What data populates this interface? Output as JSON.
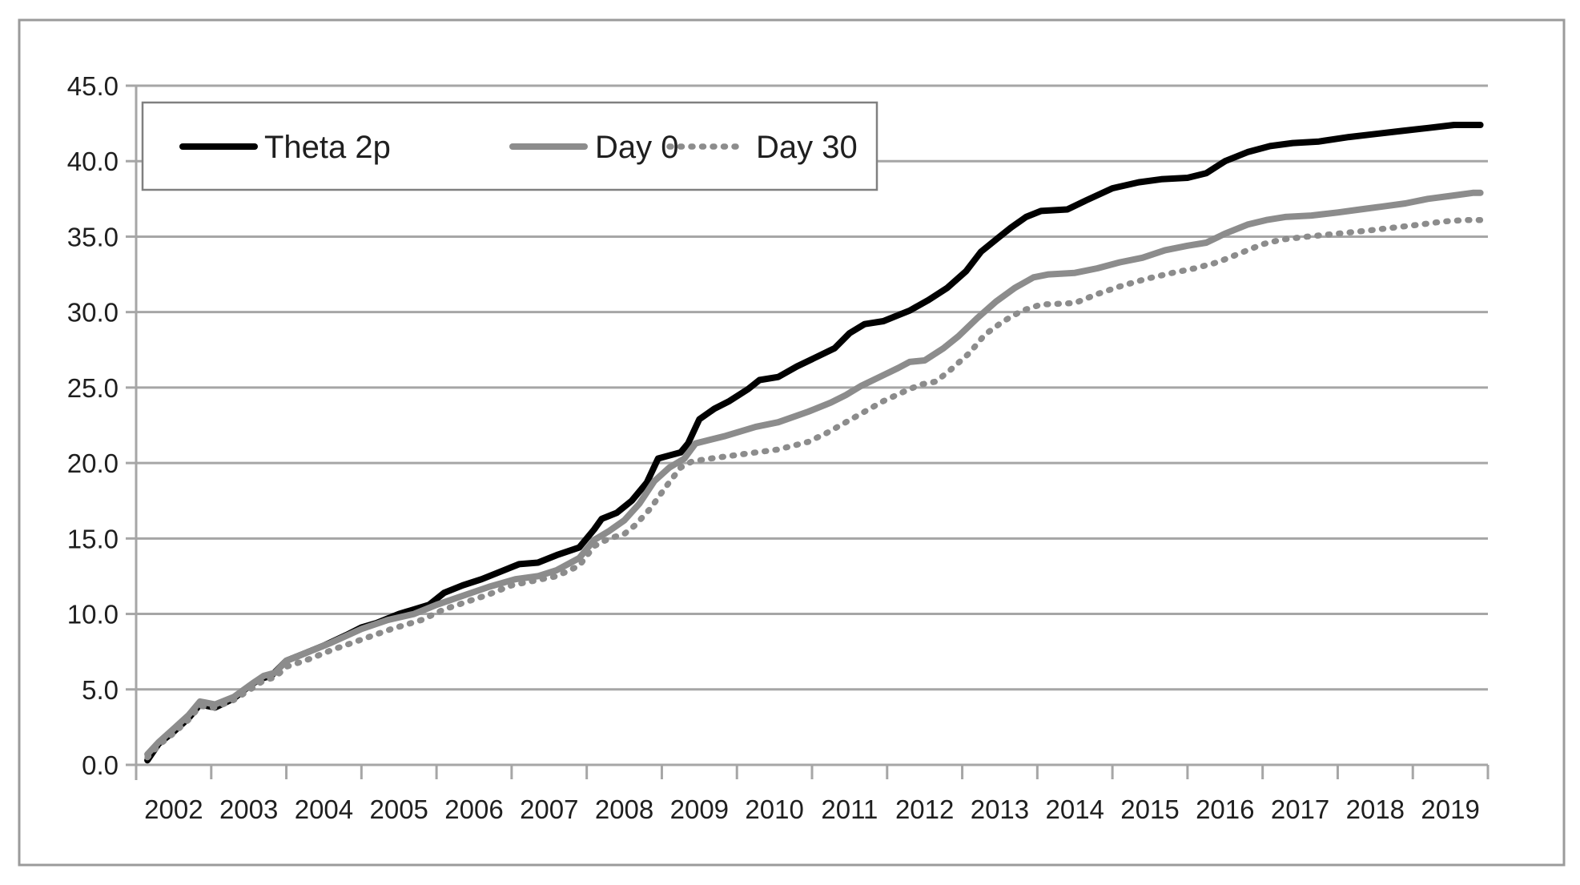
{
  "figure": {
    "background": "#ffffff",
    "border_color": "#9b9b9b"
  },
  "chart_data": {
    "type": "line",
    "title": "",
    "xlabel": "",
    "ylabel": "",
    "xlim": [
      2002,
      2020
    ],
    "ylim": [
      0,
      45
    ],
    "y_step": 5,
    "grid": "horizontal",
    "gridline_color": "#a6a6a6",
    "axis_color": "#a6a6a6",
    "tick_label_color": "#1f1f1f",
    "x_tick_labels": [
      "2002",
      "2003",
      "2004",
      "2005",
      "2006",
      "2007",
      "2008",
      "2009",
      "2010",
      "2011",
      "2012",
      "2013",
      "2014",
      "2015",
      "2016",
      "2017",
      "2018",
      "2019"
    ],
    "y_tick_labels": [
      "0.0",
      "5.0",
      "10.0",
      "15.0",
      "20.0",
      "25.0",
      "30.0",
      "35.0",
      "40.0",
      "45.0"
    ],
    "legend": {
      "position": "top-left-inside",
      "border_color": "#808080",
      "background": "#ffffff",
      "items": [
        {
          "label": "Theta 2p",
          "swatch": "solid-black"
        },
        {
          "label": "Day 0",
          "swatch": "solid-gray"
        },
        {
          "label": "Day 30",
          "swatch": "dotted-gray"
        }
      ]
    },
    "series": [
      {
        "name": "Theta 2p",
        "color": "#000000",
        "style": "solid",
        "points": [
          [
            2002.15,
            0.3
          ],
          [
            2002.3,
            1.4
          ],
          [
            2002.5,
            2.2
          ],
          [
            2002.7,
            3.1
          ],
          [
            2002.85,
            4.0
          ],
          [
            2003.05,
            3.8
          ],
          [
            2003.3,
            4.4
          ],
          [
            2003.5,
            5.2
          ],
          [
            2003.65,
            5.7
          ],
          [
            2003.8,
            5.9
          ],
          [
            2004,
            6.9
          ],
          [
            2004.25,
            7.4
          ],
          [
            2004.5,
            7.9
          ],
          [
            2004.8,
            8.6
          ],
          [
            2005,
            9.1
          ],
          [
            2005.2,
            9.4
          ],
          [
            2005.5,
            10
          ],
          [
            2005.9,
            10.6
          ],
          [
            2006.1,
            11.4
          ],
          [
            2006.35,
            11.9
          ],
          [
            2006.6,
            12.3
          ],
          [
            2006.85,
            12.8
          ],
          [
            2007.1,
            13.3
          ],
          [
            2007.35,
            13.4
          ],
          [
            2007.6,
            13.9
          ],
          [
            2007.9,
            14.4
          ],
          [
            2008.1,
            15.6
          ],
          [
            2008.2,
            16.3
          ],
          [
            2008.4,
            16.7
          ],
          [
            2008.6,
            17.5
          ],
          [
            2008.8,
            18.7
          ],
          [
            2008.95,
            20.3
          ],
          [
            2009.1,
            20.5
          ],
          [
            2009.25,
            20.7
          ],
          [
            2009.35,
            21.3
          ],
          [
            2009.5,
            22.9
          ],
          [
            2009.7,
            23.6
          ],
          [
            2009.9,
            24.1
          ],
          [
            2010.15,
            24.9
          ],
          [
            2010.3,
            25.5
          ],
          [
            2010.55,
            25.7
          ],
          [
            2010.8,
            26.4
          ],
          [
            2011.05,
            27
          ],
          [
            2011.3,
            27.6
          ],
          [
            2011.5,
            28.6
          ],
          [
            2011.7,
            29.2
          ],
          [
            2011.95,
            29.4
          ],
          [
            2012.15,
            29.8
          ],
          [
            2012.3,
            30.1
          ],
          [
            2012.55,
            30.8
          ],
          [
            2012.8,
            31.6
          ],
          [
            2013.05,
            32.7
          ],
          [
            2013.25,
            34
          ],
          [
            2013.5,
            35
          ],
          [
            2013.65,
            35.6
          ],
          [
            2013.85,
            36.3
          ],
          [
            2014.05,
            36.7
          ],
          [
            2014.4,
            36.8
          ],
          [
            2014.65,
            37.4
          ],
          [
            2015,
            38.2
          ],
          [
            2015.35,
            38.6
          ],
          [
            2015.65,
            38.8
          ],
          [
            2016,
            38.9
          ],
          [
            2016.25,
            39.2
          ],
          [
            2016.5,
            40
          ],
          [
            2016.8,
            40.6
          ],
          [
            2017.1,
            41
          ],
          [
            2017.4,
            41.2
          ],
          [
            2017.75,
            41.3
          ],
          [
            2018.15,
            41.6
          ],
          [
            2018.5,
            41.8
          ],
          [
            2018.85,
            42
          ],
          [
            2019.2,
            42.2
          ],
          [
            2019.55,
            42.4
          ],
          [
            2019.9,
            42.4
          ]
        ]
      },
      {
        "name": "Day 0",
        "color": "#8c8c8c",
        "style": "solid",
        "points": [
          [
            2002.15,
            0.7
          ],
          [
            2002.3,
            1.5
          ],
          [
            2002.5,
            2.4
          ],
          [
            2002.7,
            3.3
          ],
          [
            2002.85,
            4.2
          ],
          [
            2003.05,
            4
          ],
          [
            2003.3,
            4.5
          ],
          [
            2003.55,
            5.4
          ],
          [
            2003.7,
            5.9
          ],
          [
            2003.85,
            6.1
          ],
          [
            2004,
            6.9
          ],
          [
            2004.3,
            7.5
          ],
          [
            2004.6,
            8.1
          ],
          [
            2005,
            9
          ],
          [
            2005.35,
            9.6
          ],
          [
            2005.7,
            10
          ],
          [
            2006,
            10.6
          ],
          [
            2006.35,
            11.2
          ],
          [
            2006.7,
            11.8
          ],
          [
            2007.05,
            12.3
          ],
          [
            2007.35,
            12.5
          ],
          [
            2007.6,
            12.9
          ],
          [
            2007.9,
            13.7
          ],
          [
            2008.1,
            14.9
          ],
          [
            2008.3,
            15.5
          ],
          [
            2008.5,
            16.2
          ],
          [
            2008.7,
            17.3
          ],
          [
            2008.9,
            18.8
          ],
          [
            2009.1,
            19.7
          ],
          [
            2009.3,
            20.3
          ],
          [
            2009.45,
            21.3
          ],
          [
            2009.85,
            21.8
          ],
          [
            2010.25,
            22.4
          ],
          [
            2010.55,
            22.7
          ],
          [
            2010.95,
            23.4
          ],
          [
            2011.25,
            24
          ],
          [
            2011.45,
            24.5
          ],
          [
            2011.65,
            25.1
          ],
          [
            2011.9,
            25.7
          ],
          [
            2012.15,
            26.3
          ],
          [
            2012.3,
            26.7
          ],
          [
            2012.5,
            26.8
          ],
          [
            2012.75,
            27.6
          ],
          [
            2012.95,
            28.4
          ],
          [
            2013.2,
            29.6
          ],
          [
            2013.45,
            30.7
          ],
          [
            2013.7,
            31.6
          ],
          [
            2013.95,
            32.3
          ],
          [
            2014.15,
            32.5
          ],
          [
            2014.5,
            32.6
          ],
          [
            2014.8,
            32.9
          ],
          [
            2015.1,
            33.3
          ],
          [
            2015.4,
            33.6
          ],
          [
            2015.7,
            34.1
          ],
          [
            2016,
            34.4
          ],
          [
            2016.25,
            34.6
          ],
          [
            2016.5,
            35.2
          ],
          [
            2016.8,
            35.8
          ],
          [
            2017.05,
            36.1
          ],
          [
            2017.3,
            36.3
          ],
          [
            2017.65,
            36.4
          ],
          [
            2018,
            36.6
          ],
          [
            2018.3,
            36.8
          ],
          [
            2018.6,
            37
          ],
          [
            2018.9,
            37.2
          ],
          [
            2019.2,
            37.5
          ],
          [
            2019.5,
            37.7
          ],
          [
            2019.8,
            37.9
          ],
          [
            2019.9,
            37.9
          ]
        ]
      },
      {
        "name": "Day 30",
        "color": "#8c8c8c",
        "style": "dotted",
        "points": [
          [
            2002.15,
            0.5
          ],
          [
            2002.3,
            1.3
          ],
          [
            2002.5,
            2.1
          ],
          [
            2002.7,
            3
          ],
          [
            2002.85,
            3.9
          ],
          [
            2003.05,
            3.8
          ],
          [
            2003.3,
            4.3
          ],
          [
            2003.55,
            5.1
          ],
          [
            2003.7,
            5.6
          ],
          [
            2003.85,
            5.8
          ],
          [
            2004,
            6.5
          ],
          [
            2004.3,
            7
          ],
          [
            2004.6,
            7.6
          ],
          [
            2005,
            8.3
          ],
          [
            2005.4,
            9
          ],
          [
            2005.8,
            9.6
          ],
          [
            2006.1,
            10.3
          ],
          [
            2006.4,
            10.8
          ],
          [
            2006.7,
            11.3
          ],
          [
            2007,
            11.9
          ],
          [
            2007.3,
            12.2
          ],
          [
            2007.6,
            12.5
          ],
          [
            2007.9,
            13.2
          ],
          [
            2008.1,
            14.5
          ],
          [
            2008.3,
            15
          ],
          [
            2008.5,
            15.3
          ],
          [
            2008.65,
            15.9
          ],
          [
            2008.85,
            17
          ],
          [
            2009.05,
            18.4
          ],
          [
            2009.25,
            19.7
          ],
          [
            2009.4,
            20.1
          ],
          [
            2009.65,
            20.3
          ],
          [
            2009.95,
            20.5
          ],
          [
            2010.25,
            20.7
          ],
          [
            2010.55,
            20.9
          ],
          [
            2010.95,
            21.4
          ],
          [
            2011.2,
            22
          ],
          [
            2011.45,
            22.7
          ],
          [
            2011.7,
            23.4
          ],
          [
            2011.95,
            24.1
          ],
          [
            2012.3,
            24.9
          ],
          [
            2012.45,
            25.2
          ],
          [
            2012.65,
            25.4
          ],
          [
            2012.85,
            26.2
          ],
          [
            2013.1,
            27.3
          ],
          [
            2013.3,
            28.5
          ],
          [
            2013.55,
            29.4
          ],
          [
            2013.8,
            30.1
          ],
          [
            2014.05,
            30.5
          ],
          [
            2014.5,
            30.6
          ],
          [
            2014.8,
            31.2
          ],
          [
            2015.1,
            31.7
          ],
          [
            2015.45,
            32.2
          ],
          [
            2015.8,
            32.6
          ],
          [
            2016.1,
            32.9
          ],
          [
            2016.4,
            33.3
          ],
          [
            2016.7,
            33.9
          ],
          [
            2017,
            34.5
          ],
          [
            2017.25,
            34.8
          ],
          [
            2017.6,
            35
          ],
          [
            2018,
            35.2
          ],
          [
            2018.4,
            35.4
          ],
          [
            2018.75,
            35.6
          ],
          [
            2019.1,
            35.8
          ],
          [
            2019.4,
            36
          ],
          [
            2019.7,
            36.1
          ],
          [
            2019.9,
            36.1
          ]
        ]
      }
    ]
  }
}
